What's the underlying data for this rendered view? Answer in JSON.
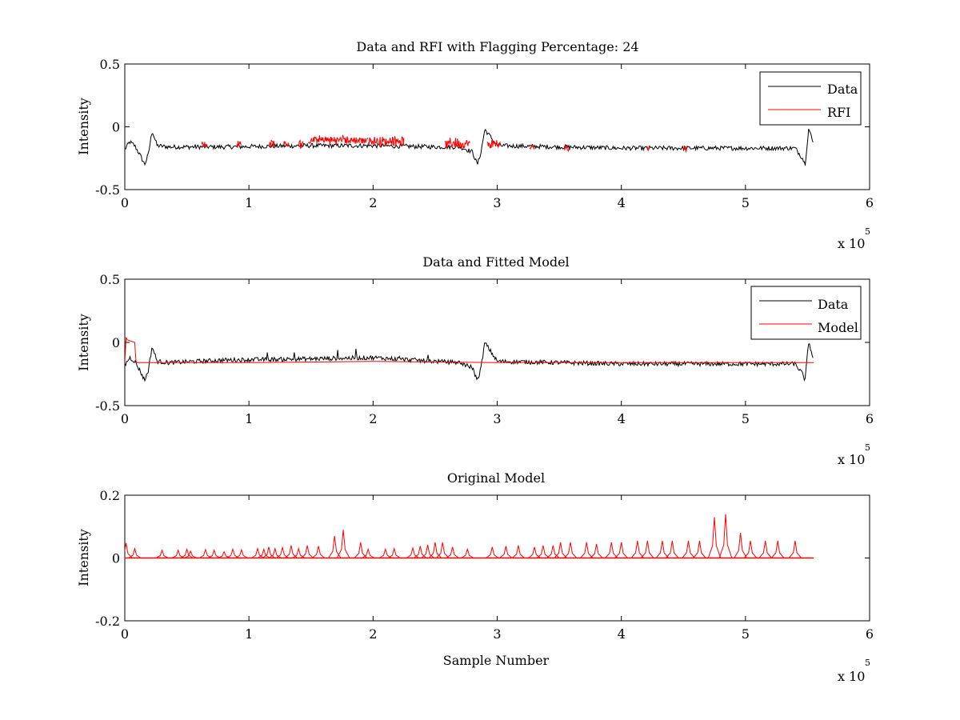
{
  "figure": {
    "background": "#ffffff",
    "colors": {
      "data": "#000000",
      "rfi": "#ff0000",
      "model": "#ff0000"
    }
  },
  "chart_data": [
    {
      "type": "line",
      "title": "Data and RFI with Flagging Percentage: 24",
      "xlabel": "",
      "ylabel": "Intensity",
      "xlim": [
        0,
        600000
      ],
      "ylim": [
        -0.5,
        0.5
      ],
      "xticks": [
        0,
        1,
        2,
        3,
        4,
        5,
        6
      ],
      "xtick_labels": [
        "0",
        "1",
        "2",
        "3",
        "4",
        "5",
        "6"
      ],
      "yticks": [
        -0.5,
        0,
        0.5
      ],
      "ytick_labels": [
        "-0.5",
        "0",
        "0.5"
      ],
      "x_multiplier_base": "x 10",
      "x_multiplier_exp": "5",
      "legend_position": "top-right",
      "series": [
        {
          "name": "Data",
          "color": "#000000",
          "x": [
            0,
            4000,
            8000,
            12000,
            16000,
            19000,
            22000,
            26000,
            35000,
            80000,
            150000,
            200000,
            250000,
            270000,
            280000,
            284000,
            287000,
            290000,
            300000,
            350000,
            400000,
            450000,
            500000,
            540000,
            546000,
            548000,
            551000,
            555000
          ],
          "y": [
            -0.18,
            -0.12,
            -0.15,
            -0.22,
            -0.3,
            -0.22,
            -0.03,
            -0.15,
            -0.16,
            -0.16,
            -0.15,
            -0.15,
            -0.16,
            -0.16,
            -0.2,
            -0.3,
            -0.2,
            -0.02,
            -0.15,
            -0.16,
            -0.17,
            -0.17,
            -0.17,
            -0.17,
            -0.25,
            -0.3,
            -0.01,
            -0.15
          ]
        },
        {
          "name": "RFI",
          "color": "#ff0000",
          "segments": [
            {
              "x": [
                62000,
                66000
              ],
              "y": [
                -0.15,
                -0.1
              ]
            },
            {
              "x": [
                90000,
                94000
              ],
              "y": [
                -0.15,
                -0.1
              ]
            },
            {
              "x": [
                116000,
                121000
              ],
              "y": [
                -0.15,
                -0.08
              ]
            },
            {
              "x": [
                128000,
                132000
              ],
              "y": [
                -0.15,
                -0.1
              ]
            },
            {
              "x": [
                140000,
                144000
              ],
              "y": [
                -0.15,
                -0.1
              ]
            },
            {
              "x": [
                148000,
                196000
              ],
              "y": [
                -0.12,
                -0.06
              ]
            },
            {
              "x": [
                196000,
                225000
              ],
              "y": [
                -0.13,
                -0.07
              ]
            },
            {
              "x": [
                258000,
                278000
              ],
              "y": [
                -0.15,
                -0.08
              ]
            },
            {
              "x": [
                292000,
                303000
              ],
              "y": [
                -0.15,
                -0.09
              ]
            },
            {
              "x": [
                326000,
                330000
              ],
              "y": [
                -0.17,
                -0.13
              ]
            },
            {
              "x": [
                354000,
                358000
              ],
              "y": [
                -0.17,
                -0.13
              ]
            },
            {
              "x": [
                420000,
                423000
              ],
              "y": [
                -0.17,
                -0.14
              ]
            },
            {
              "x": [
                450000,
                453000
              ],
              "y": [
                -0.17,
                -0.14
              ]
            }
          ]
        }
      ]
    },
    {
      "type": "line",
      "title": "Data and Fitted Model",
      "xlabel": "",
      "ylabel": "Intensity",
      "xlim": [
        0,
        600000
      ],
      "ylim": [
        -0.5,
        0.5
      ],
      "xticks": [
        0,
        1,
        2,
        3,
        4,
        5,
        6
      ],
      "xtick_labels": [
        "0",
        "1",
        "2",
        "3",
        "4",
        "5",
        "6"
      ],
      "yticks": [
        -0.5,
        0,
        0.5
      ],
      "ytick_labels": [
        "-0.5",
        "0",
        "0.5"
      ],
      "x_multiplier_base": "x 10",
      "x_multiplier_exp": "5",
      "legend_position": "top-right",
      "series": [
        {
          "name": "Data",
          "color": "#000000",
          "x": [
            0,
            4000,
            8000,
            12000,
            16000,
            19000,
            22000,
            26000,
            35000,
            80000,
            150000,
            200000,
            250000,
            270000,
            280000,
            284000,
            287000,
            290000,
            300000,
            350000,
            400000,
            450000,
            500000,
            540000,
            546000,
            548000,
            551000,
            555000
          ],
          "y": [
            -0.18,
            -0.12,
            -0.15,
            -0.22,
            -0.3,
            -0.22,
            -0.03,
            -0.15,
            -0.16,
            -0.14,
            -0.13,
            -0.12,
            -0.15,
            -0.16,
            -0.2,
            -0.3,
            -0.2,
            0.0,
            -0.15,
            -0.16,
            -0.17,
            -0.17,
            -0.17,
            -0.17,
            -0.25,
            -0.3,
            0.01,
            -0.15
          ]
        },
        {
          "name": "Model",
          "color": "#ff0000",
          "x": [
            0,
            1000,
            2000,
            8000,
            9000,
            10000,
            100000,
            200000,
            300000,
            400000,
            500000,
            555000
          ],
          "y": [
            -0.16,
            0.04,
            0.02,
            0.0,
            -0.15,
            -0.16,
            -0.16,
            -0.15,
            -0.16,
            -0.16,
            -0.16,
            -0.16
          ]
        }
      ]
    },
    {
      "type": "line",
      "title": "Original Model",
      "xlabel": "Sample Number",
      "ylabel": "Intensity",
      "xlim": [
        0,
        600000
      ],
      "ylim": [
        -0.2,
        0.2
      ],
      "xticks": [
        0,
        1,
        2,
        3,
        4,
        5,
        6
      ],
      "xtick_labels": [
        "0",
        "1",
        "2",
        "3",
        "4",
        "5",
        "6"
      ],
      "yticks": [
        -0.2,
        0,
        0.2
      ],
      "ytick_labels": [
        "-0.2",
        "0",
        "0.2"
      ],
      "x_multiplier_base": "x 10",
      "x_multiplier_exp": "5",
      "series": [
        {
          "color": "#ff0000",
          "x_start": 0,
          "x_end": 555000,
          "baseline": 0.0,
          "peaks": [
            {
              "x": 1000,
              "y": 0.048
            },
            {
              "x": 8000,
              "y": 0.03
            },
            {
              "x": 30000,
              "y": 0.025
            },
            {
              "x": 43000,
              "y": 0.025
            },
            {
              "x": 50000,
              "y": 0.028
            },
            {
              "x": 53000,
              "y": 0.022
            },
            {
              "x": 65000,
              "y": 0.027
            },
            {
              "x": 72000,
              "y": 0.025
            },
            {
              "x": 80000,
              "y": 0.02
            },
            {
              "x": 87000,
              "y": 0.028
            },
            {
              "x": 94000,
              "y": 0.026
            },
            {
              "x": 107000,
              "y": 0.03
            },
            {
              "x": 112000,
              "y": 0.028
            },
            {
              "x": 116000,
              "y": 0.035
            },
            {
              "x": 121000,
              "y": 0.03
            },
            {
              "x": 127000,
              "y": 0.033
            },
            {
              "x": 134000,
              "y": 0.04
            },
            {
              "x": 140000,
              "y": 0.03
            },
            {
              "x": 147000,
              "y": 0.04
            },
            {
              "x": 156000,
              "y": 0.038
            },
            {
              "x": 169000,
              "y": 0.07
            },
            {
              "x": 176000,
              "y": 0.09
            },
            {
              "x": 190000,
              "y": 0.05
            },
            {
              "x": 196000,
              "y": 0.028
            },
            {
              "x": 210000,
              "y": 0.028
            },
            {
              "x": 217000,
              "y": 0.03
            },
            {
              "x": 232000,
              "y": 0.032
            },
            {
              "x": 238000,
              "y": 0.038
            },
            {
              "x": 244000,
              "y": 0.042
            },
            {
              "x": 250000,
              "y": 0.05
            },
            {
              "x": 256000,
              "y": 0.05
            },
            {
              "x": 264000,
              "y": 0.035
            },
            {
              "x": 276000,
              "y": 0.028
            },
            {
              "x": 296000,
              "y": 0.035
            },
            {
              "x": 307000,
              "y": 0.038
            },
            {
              "x": 317000,
              "y": 0.04
            },
            {
              "x": 330000,
              "y": 0.035
            },
            {
              "x": 337000,
              "y": 0.04
            },
            {
              "x": 345000,
              "y": 0.04
            },
            {
              "x": 351000,
              "y": 0.05
            },
            {
              "x": 359000,
              "y": 0.05
            },
            {
              "x": 372000,
              "y": 0.05
            },
            {
              "x": 380000,
              "y": 0.045
            },
            {
              "x": 392000,
              "y": 0.05
            },
            {
              "x": 400000,
              "y": 0.05
            },
            {
              "x": 413000,
              "y": 0.055
            },
            {
              "x": 421000,
              "y": 0.055
            },
            {
              "x": 433000,
              "y": 0.055
            },
            {
              "x": 441000,
              "y": 0.055
            },
            {
              "x": 454000,
              "y": 0.055
            },
            {
              "x": 463000,
              "y": 0.055
            },
            {
              "x": 475000,
              "y": 0.13
            },
            {
              "x": 484000,
              "y": 0.14
            },
            {
              "x": 496000,
              "y": 0.08
            },
            {
              "x": 504000,
              "y": 0.055
            },
            {
              "x": 516000,
              "y": 0.055
            },
            {
              "x": 526000,
              "y": 0.055
            },
            {
              "x": 540000,
              "y": 0.055
            }
          ]
        }
      ]
    }
  ]
}
